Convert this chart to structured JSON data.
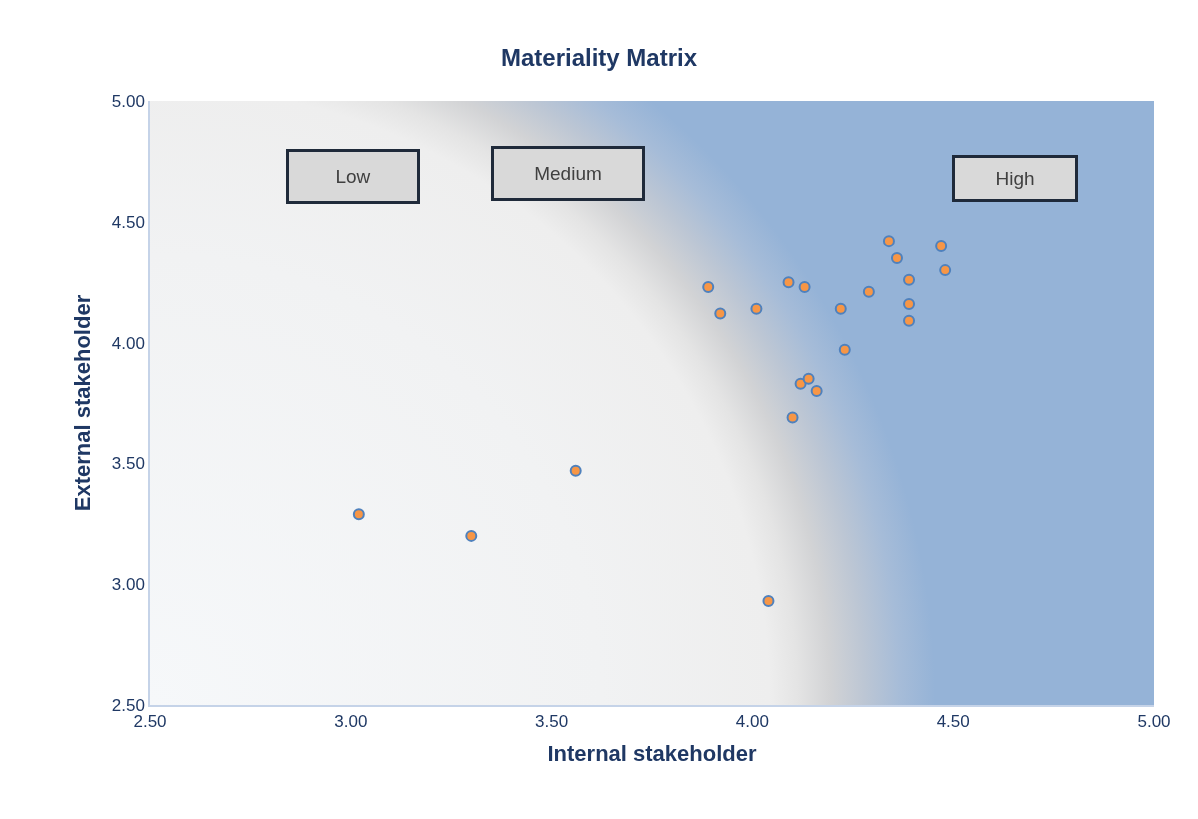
{
  "chart_data": {
    "type": "scatter",
    "title": "Materiality Matrix",
    "xlabel": "Internal stakeholder",
    "ylabel": "External stakeholder",
    "x": [
      3.02,
      3.3,
      3.56,
      4.04,
      3.89,
      3.92,
      4.01,
      4.09,
      4.13,
      4.22,
      4.29,
      4.34,
      4.36,
      4.39,
      4.39,
      4.39,
      4.47,
      4.48,
      4.23,
      4.12,
      4.14,
      4.16,
      4.1
    ],
    "series": [
      {
        "color": "#f79646",
        "values": [
          3.29,
          3.2,
          3.47,
          2.93,
          4.23,
          4.12,
          4.14,
          4.25,
          4.23,
          4.14,
          4.21,
          4.42,
          4.35,
          4.26,
          4.16,
          4.09,
          4.4,
          4.3,
          3.97,
          3.83,
          3.85,
          3.8,
          3.69
        ]
      }
    ],
    "xlim": [
      2.5,
      5.0
    ],
    "ylim": [
      2.5,
      5.0
    ],
    "xticks": [
      {
        "value": 2.5,
        "label": "2.50"
      },
      {
        "value": 3.0,
        "label": "3.00"
      },
      {
        "value": 3.5,
        "label": "3.50"
      },
      {
        "value": 4.0,
        "label": "4.00"
      },
      {
        "value": 4.5,
        "label": "4.50"
      },
      {
        "value": 5.0,
        "label": "5.00"
      }
    ],
    "yticks": [
      {
        "value": 2.5,
        "label": "2.50"
      },
      {
        "value": 3.0,
        "label": "3.00"
      },
      {
        "value": 3.5,
        "label": "3.50"
      },
      {
        "value": 4.0,
        "label": "4.00"
      },
      {
        "value": 4.5,
        "label": "4.50"
      },
      {
        "value": 5.0,
        "label": "5.00"
      }
    ],
    "annotations": [
      "Low",
      "Medium",
      "High"
    ],
    "marker": "circle"
  }
}
